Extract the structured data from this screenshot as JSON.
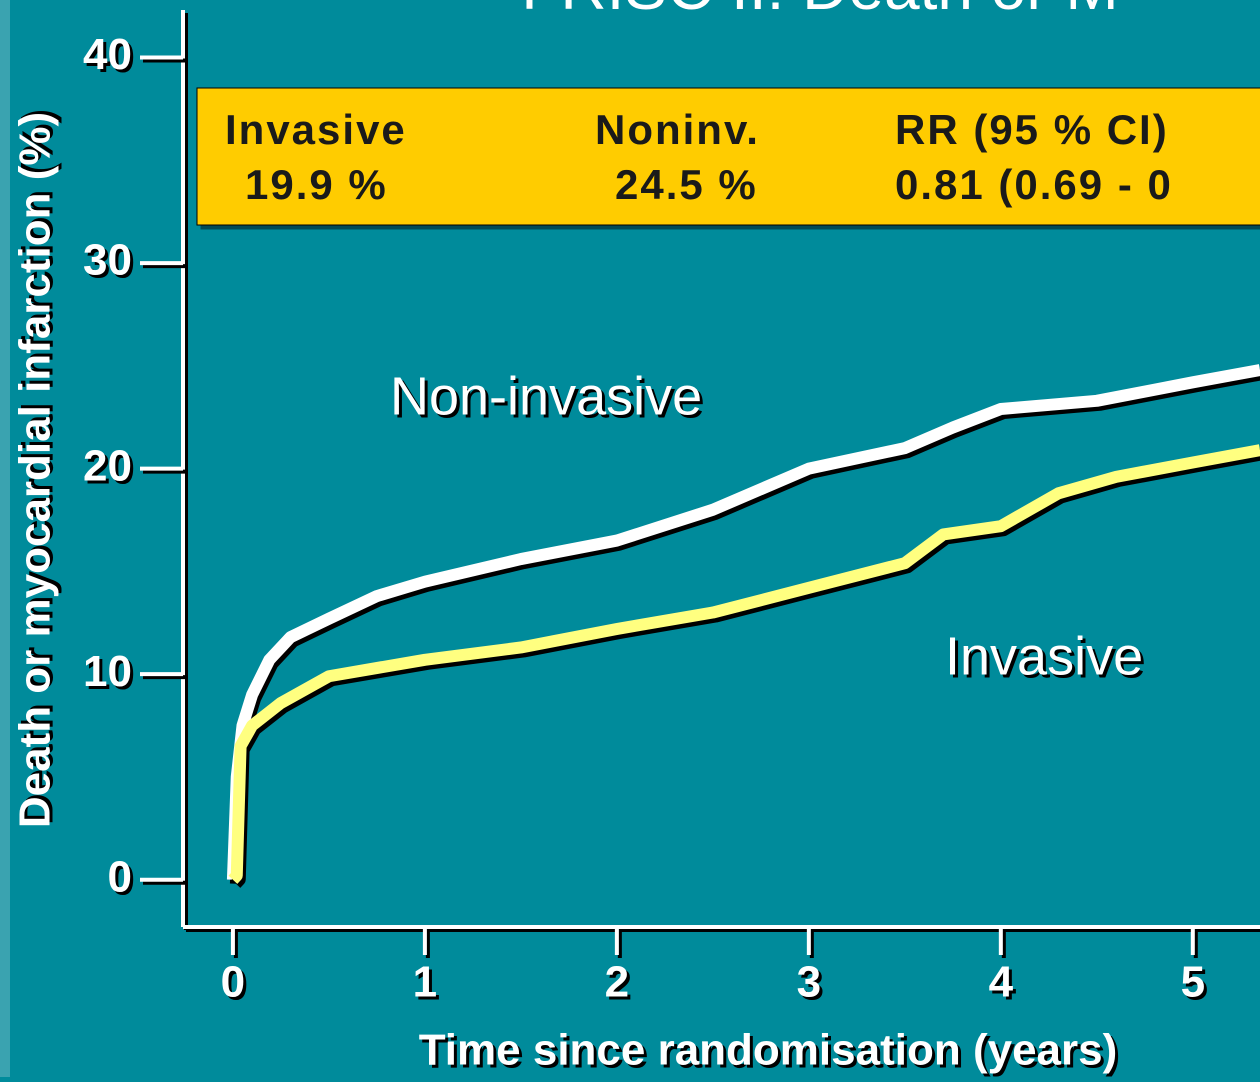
{
  "chart_data": {
    "type": "line",
    "title": "FRISC II: Death or M",
    "xlabel": "Time since randomisation (years)",
    "ylabel": "Death or myocardial infarction (%)",
    "xlim": [
      -0.26,
      5.35
    ],
    "ylim": [
      -2.3,
      42.8
    ],
    "xticks": [
      0,
      1,
      2,
      3,
      4,
      5
    ],
    "yticks": [
      0,
      10,
      20,
      30,
      40
    ],
    "box": {
      "headers": [
        "Invasive",
        "Noninv.",
        "RR (95 % CI)"
      ],
      "cells": [
        "19.9 %",
        "24.5 %",
        "0.81 (0.69 - 0"
      ]
    },
    "series": [
      {
        "name": "Non-invasive",
        "color": "#ffffff",
        "x": [
          0,
          0.02,
          0.05,
          0.1,
          0.19,
          0.3,
          0.5,
          0.75,
          1,
          1.5,
          2,
          2.5,
          3,
          3.5,
          3.75,
          4,
          4.5,
          5,
          5.35
        ],
        "values": [
          0,
          5,
          7.5,
          9,
          10.7,
          11.8,
          12.7,
          13.8,
          14.5,
          15.6,
          16.5,
          18,
          20,
          21,
          22,
          22.9,
          23.3,
          24.2,
          24.8
        ]
      },
      {
        "name": "Invasive",
        "color": "#ffff80",
        "x": [
          0,
          0.02,
          0.04,
          0.1,
          0.25,
          0.5,
          1,
          1.5,
          2,
          2.5,
          3,
          3.5,
          3.7,
          4,
          4.3,
          4.6,
          5,
          5.35
        ],
        "values": [
          0,
          0.2,
          6.5,
          7.5,
          8.6,
          9.9,
          10.7,
          11.3,
          12.2,
          13,
          14.2,
          15.4,
          16.8,
          17.2,
          18.8,
          19.6,
          20.3,
          20.9
        ]
      }
    ]
  }
}
